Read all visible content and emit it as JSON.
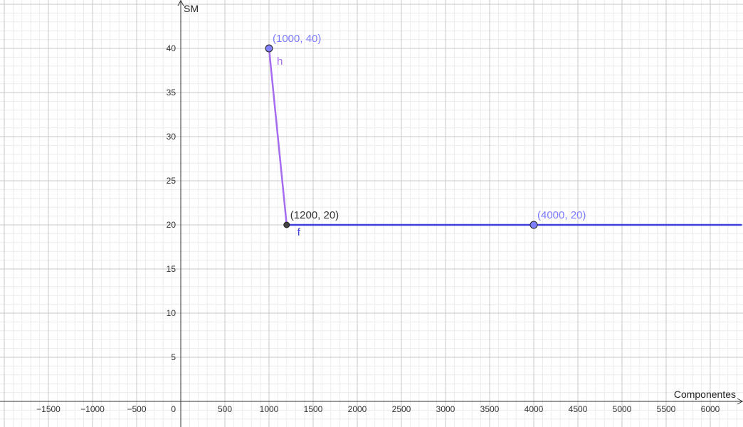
{
  "chart_data": {
    "type": "line",
    "title": "",
    "xlabel": "Componentes",
    "ylabel": "SM",
    "xlim": [
      -2000,
      6350
    ],
    "ylim": [
      -3,
      45
    ],
    "grid": true,
    "x_ticks": [
      -1500,
      -1000,
      -500,
      500,
      1000,
      1500,
      2000,
      2500,
      3000,
      3500,
      4000,
      4500,
      5000,
      5500,
      6000
    ],
    "x_tick_labels": [
      "−1500",
      "−1000",
      "−500",
      "500",
      "1000",
      "1500",
      "2000",
      "2500",
      "3000",
      "3500",
      "4000",
      "4500",
      "5000",
      "5500",
      "6000"
    ],
    "y_ticks": [
      5,
      10,
      15,
      20,
      25,
      30,
      35,
      40
    ],
    "y_tick_labels": [
      "5",
      "10",
      "15",
      "20",
      "25",
      "30",
      "35",
      "40"
    ],
    "origin_label": "0",
    "series": [
      {
        "name": "h",
        "color": "#a56cf0",
        "points": [
          [
            1000,
            40
          ],
          [
            1200,
            20
          ]
        ]
      },
      {
        "name": "f",
        "color": "#3f3fe0",
        "points": [
          [
            1200,
            20
          ],
          [
            6350,
            20
          ]
        ]
      }
    ],
    "points": [
      {
        "x": 1000,
        "y": 40,
        "label": "(1000, 40)",
        "fill": "#8080ff",
        "label_color": "#7b7bff"
      },
      {
        "x": 1200,
        "y": 20,
        "label": "(1200, 20)",
        "fill": "#444444",
        "label_color": "#333333"
      },
      {
        "x": 4000,
        "y": 20,
        "label": "(4000, 20)",
        "fill": "#8080ff",
        "label_color": "#7b7bff"
      }
    ]
  }
}
